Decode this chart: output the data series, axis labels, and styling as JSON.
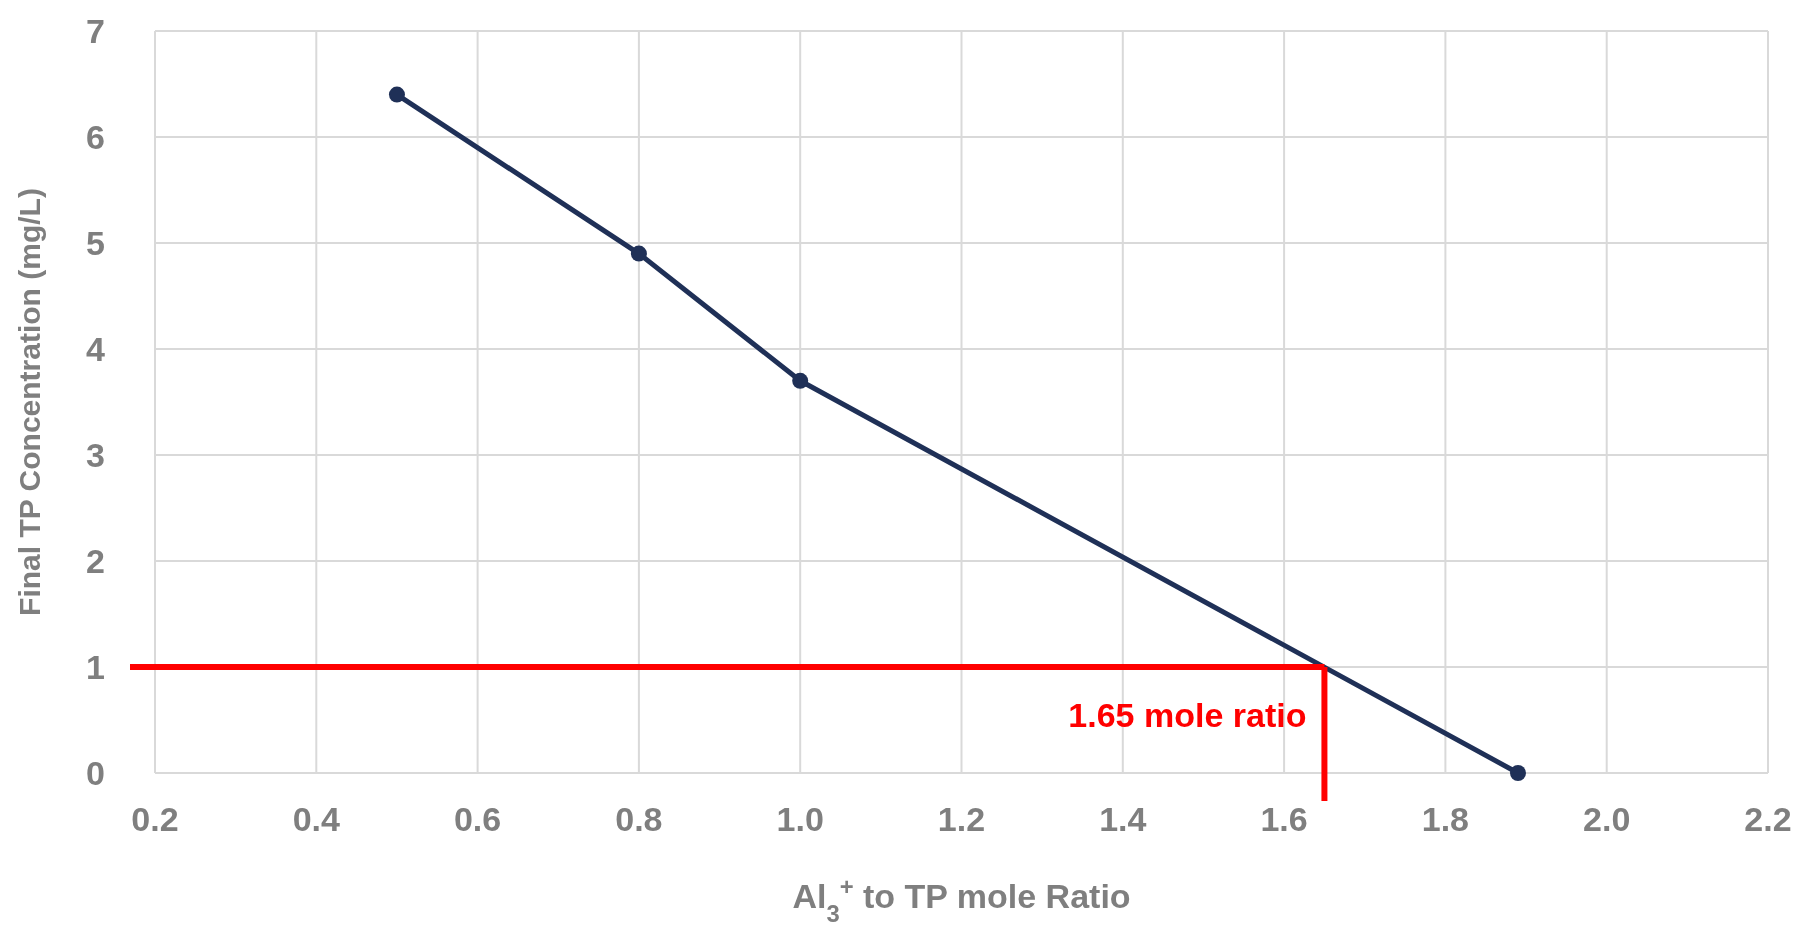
{
  "chart_data": {
    "type": "line",
    "xlabel": "Al$_{3}$$^{+}$ to TP mole Ratio",
    "ylabel": "Final TP Concentration (mg/L)",
    "x": [
      0.5,
      0.8,
      1.0,
      1.89
    ],
    "series": [
      {
        "color": "#1f3057",
        "values": [
          6.4,
          4.9,
          3.7,
          0
        ]
      }
    ],
    "xlim": [
      0.2,
      2.2
    ],
    "xticks": [
      {
        "value": 0.2,
        "label": "0.2"
      },
      {
        "value": 0.4,
        "label": "0.4"
      },
      {
        "value": 0.6,
        "label": "0.6"
      },
      {
        "value": 0.8,
        "label": "0.8"
      },
      {
        "value": 1.0,
        "label": "1.0"
      },
      {
        "value": 1.2,
        "label": "1.2"
      },
      {
        "value": 1.4,
        "label": "1.4"
      },
      {
        "value": 1.6,
        "label": "1.6"
      },
      {
        "value": 1.8,
        "label": "1.8"
      },
      {
        "value": 2.0,
        "label": "2.0"
      },
      {
        "value": 2.2,
        "label": "2.2"
      }
    ],
    "ylim": [
      0,
      7
    ],
    "yticks": [
      0,
      1,
      2,
      3,
      4,
      5,
      6,
      7
    ],
    "ref_lines": [
      {
        "axis": "y",
        "value": 1,
        "label": null,
        "color": "#ff0000"
      },
      {
        "axis": "x",
        "value": 1.65,
        "label": "1.65 mole ratio",
        "color": "#ff0000"
      }
    ],
    "grid": true,
    "marker": "circle",
    "line_style": "solid"
  }
}
